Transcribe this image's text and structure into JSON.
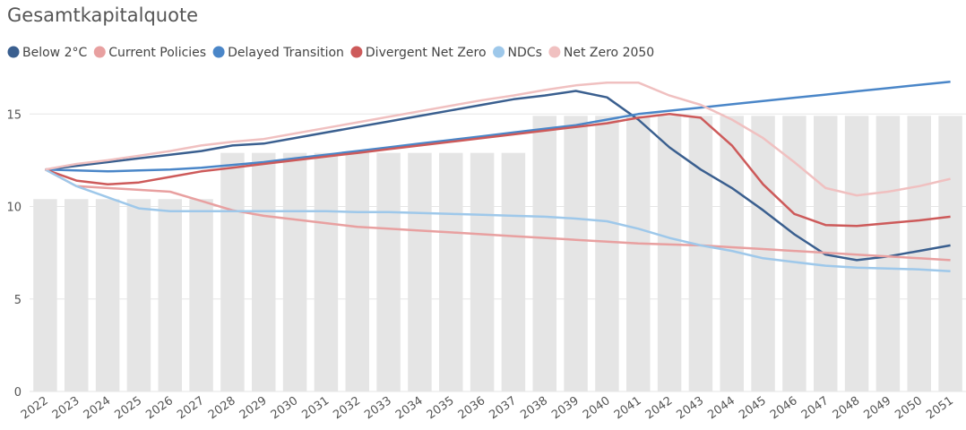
{
  "chart_data": {
    "type": "combo",
    "title": "Gesamtkapitalquote",
    "categories": [
      "2022",
      "2023",
      "2024",
      "2025",
      "2026",
      "2027",
      "2028",
      "2029",
      "2030",
      "2031",
      "2032",
      "2033",
      "2034",
      "2035",
      "2036",
      "2037",
      "2038",
      "2039",
      "2040",
      "2041",
      "2042",
      "2043",
      "2044",
      "2045",
      "2046",
      "2047",
      "2048",
      "2049",
      "2050",
      "2051"
    ],
    "ylim": [
      0,
      17
    ],
    "yticks": [
      0,
      5,
      10,
      15
    ],
    "grid": true,
    "series": [
      {
        "type": "bar",
        "color": "#e5e5e5",
        "values": [
          10.4,
          10.4,
          10.4,
          10.4,
          10.4,
          10.4,
          12.9,
          12.9,
          12.9,
          12.9,
          12.9,
          12.9,
          12.9,
          12.9,
          12.9,
          12.9,
          14.9,
          14.9,
          14.9,
          14.9,
          14.9,
          14.9,
          14.9,
          14.9,
          14.9,
          14.9,
          14.9,
          14.9,
          14.9,
          14.9
        ]
      },
      {
        "type": "line",
        "name": "Below 2°C",
        "color": "#3a5f8f",
        "values": [
          12,
          12.2,
          12.4,
          12.6,
          12.8,
          13.0,
          13.3,
          13.4,
          13.7,
          14.0,
          14.3,
          14.6,
          14.9,
          15.2,
          15.5,
          15.8,
          16.0,
          16.25,
          15.9,
          14.7,
          13.2,
          12.0,
          11.0,
          9.8,
          8.5,
          7.4,
          7.1,
          7.3,
          7.6,
          7.9
        ]
      },
      {
        "type": "line",
        "name": "Current Policies",
        "color": "#e8a0a0",
        "values": [
          12,
          11.1,
          11.0,
          10.9,
          10.8,
          10.3,
          9.8,
          9.5,
          9.3,
          9.1,
          8.9,
          8.8,
          8.7,
          8.6,
          8.5,
          8.4,
          8.3,
          8.2,
          8.1,
          8.0,
          7.95,
          7.9,
          7.8,
          7.7,
          7.6,
          7.5,
          7.4,
          7.3,
          7.2,
          7.1
        ]
      },
      {
        "type": "line",
        "name": "Delayed Transition",
        "color": "#4a86c8",
        "values": [
          12,
          11.95,
          11.9,
          11.95,
          12.0,
          12.1,
          12.25,
          12.4,
          12.6,
          12.8,
          13.0,
          13.2,
          13.4,
          13.6,
          13.8,
          14.0,
          14.2,
          14.4,
          14.7,
          15.0,
          15.18,
          15.35,
          15.53,
          15.7,
          15.88,
          16.05,
          16.23,
          16.4,
          16.58,
          16.75
        ]
      },
      {
        "type": "line",
        "name": "Divergent Net Zero",
        "color": "#cd5a5a",
        "values": [
          12,
          11.4,
          11.2,
          11.3,
          11.6,
          11.9,
          12.1,
          12.3,
          12.5,
          12.7,
          12.9,
          13.1,
          13.3,
          13.5,
          13.7,
          13.9,
          14.1,
          14.3,
          14.5,
          14.8,
          15.0,
          14.8,
          13.3,
          11.2,
          9.6,
          9.0,
          8.95,
          9.1,
          9.25,
          9.45
        ]
      },
      {
        "type": "line",
        "name": "NDCs",
        "color": "#9ec8ea",
        "values": [
          12,
          11.1,
          10.5,
          9.9,
          9.75,
          9.75,
          9.75,
          9.75,
          9.75,
          9.75,
          9.7,
          9.7,
          9.65,
          9.6,
          9.55,
          9.5,
          9.45,
          9.35,
          9.2,
          8.8,
          8.3,
          7.9,
          7.6,
          7.2,
          7.0,
          6.8,
          6.7,
          6.65,
          6.6,
          6.5
        ]
      },
      {
        "type": "line",
        "name": "Net Zero 2050",
        "color": "#f0c0c0",
        "values": [
          12,
          12.3,
          12.5,
          12.75,
          13.0,
          13.3,
          13.5,
          13.65,
          13.95,
          14.25,
          14.55,
          14.85,
          15.15,
          15.45,
          15.75,
          16.0,
          16.3,
          16.55,
          16.7,
          16.7,
          16.0,
          15.5,
          14.7,
          13.7,
          12.4,
          11.0,
          10.6,
          10.8,
          11.1,
          11.5
        ]
      }
    ]
  }
}
